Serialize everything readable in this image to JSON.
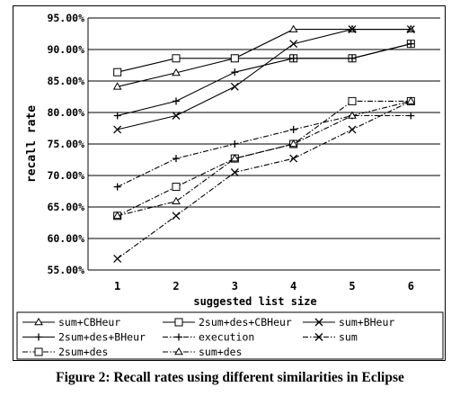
{
  "caption": "Figure 2: Recall rates using different similarities in Eclipse",
  "chart_data": {
    "type": "line",
    "title": "",
    "xlabel": "suggested list size",
    "ylabel": "recall rate",
    "x": [
      1,
      2,
      3,
      4,
      5,
      6
    ],
    "ylim": [
      0.55,
      0.95
    ],
    "yticks": [
      "95.00%",
      "90.00%",
      "85.00%",
      "80.00%",
      "75.00%",
      "70.00%",
      "65.00%",
      "60.00%",
      "55.00%"
    ],
    "ytick_values": [
      0.95,
      0.9,
      0.85,
      0.8,
      0.75,
      0.7,
      0.65,
      0.6,
      0.55
    ],
    "grid": "horizontal",
    "legend_position": "bottom",
    "series": [
      {
        "name": "sum+CBHeur",
        "values": [
          0.841,
          0.863,
          0.886,
          0.932,
          0.932,
          0.932
        ],
        "marker": "triangle",
        "dash": "solid"
      },
      {
        "name": "2sum+des+CBHeur",
        "values": [
          0.864,
          0.886,
          0.886,
          0.886,
          0.886,
          0.909
        ],
        "marker": "square",
        "dash": "solid"
      },
      {
        "name": "sum+BHeur",
        "values": [
          0.773,
          0.795,
          0.841,
          0.909,
          0.932,
          0.932
        ],
        "marker": "x",
        "dash": "solid"
      },
      {
        "name": "2sum+des+BHeur",
        "values": [
          0.795,
          0.818,
          0.864,
          0.886,
          0.886,
          0.909
        ],
        "marker": "plus",
        "dash": "solid"
      },
      {
        "name": "execution",
        "values": [
          0.682,
          0.727,
          0.75,
          0.773,
          0.795,
          0.795
        ],
        "marker": "plus",
        "dash": "dashdot"
      },
      {
        "name": "sum",
        "values": [
          0.568,
          0.636,
          0.705,
          0.727,
          0.773,
          0.818
        ],
        "marker": "x",
        "dash": "dashdot"
      },
      {
        "name": "2sum+des",
        "values": [
          0.636,
          0.682,
          0.727,
          0.75,
          0.818,
          0.818
        ],
        "marker": "square",
        "dash": "dashdot"
      },
      {
        "name": "sum+des",
        "values": [
          0.636,
          0.659,
          0.727,
          0.75,
          0.795,
          0.818
        ],
        "marker": "triangle",
        "dash": "dashdot"
      }
    ]
  }
}
